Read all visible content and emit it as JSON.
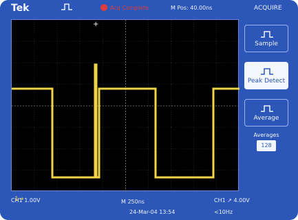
{
  "header": {
    "brand": "Tek",
    "status": "Acq Complete",
    "mpos": "M Pos: 40.00ns",
    "menu_title": "ACQUIRE"
  },
  "side_menu": {
    "items": [
      {
        "label": "Sample",
        "selected": false
      },
      {
        "label": "Peak Detect",
        "selected": true
      },
      {
        "label": "Average",
        "selected": false
      }
    ],
    "averages_label": "Averages",
    "averages_value": "128"
  },
  "screen": {
    "channel_marker": "1→",
    "trace_color": "#f1d34a",
    "grid_color": "#6f6f6f",
    "background": "#000000"
  },
  "status_bar": {
    "ch1": "CH1  1.00V",
    "h": "M 250ns",
    "date": "24-Mar-04 13:54",
    "ch2": "CH1 ↗ 4.00V",
    "freq": "<10Hz"
  },
  "colors": {
    "accent": "#2c56b8",
    "trace": "#f1d34a",
    "warn": "#e23b3b"
  }
}
